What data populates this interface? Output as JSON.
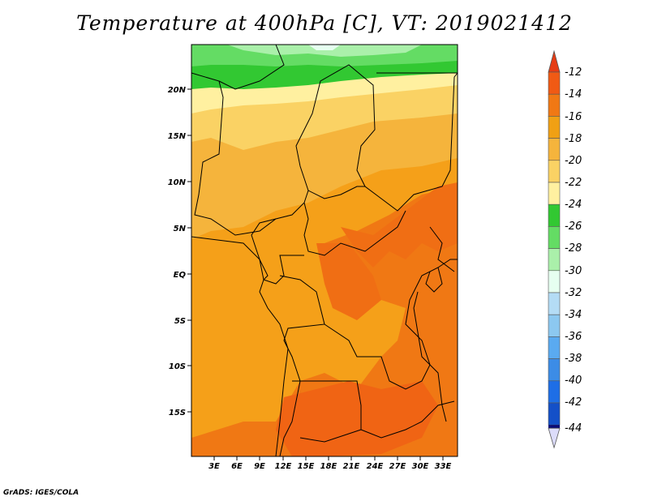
{
  "title": "Temperature at 400hPa [C], VT: 2019021412",
  "credit": "GrADS: IGES/COLA",
  "map": {
    "lat_ticks": [
      "20N",
      "15N",
      "10N",
      "5N",
      "EQ",
      "5S",
      "10S",
      "15S"
    ],
    "lon_ticks": [
      "3E",
      "6E",
      "9E",
      "12E",
      "15E",
      "18E",
      "21E",
      "24E",
      "27E",
      "30E",
      "33E"
    ]
  },
  "colorbar": {
    "levels": [
      "-12",
      "-14",
      "-16",
      "-18",
      "-20",
      "-22",
      "-24",
      "-26",
      "-28",
      "-30",
      "-32",
      "-34",
      "-36",
      "-38",
      "-40",
      "-42",
      "-44"
    ],
    "colors": [
      "#f05a14",
      "#f07814",
      "#f0a014",
      "#f5b43c",
      "#fad264",
      "#fff0a0",
      "#32c832",
      "#64dc64",
      "#aaf0aa",
      "#e6fff0",
      "#b4dcf5",
      "#8cc8f0",
      "#5aaaf0",
      "#3c8ce6",
      "#1e6ee6",
      "#1450c8",
      "#0a0a78"
    ],
    "top_arrow_color": "#e63c14",
    "bottom_arrow_color": "#dcdcfa"
  }
}
